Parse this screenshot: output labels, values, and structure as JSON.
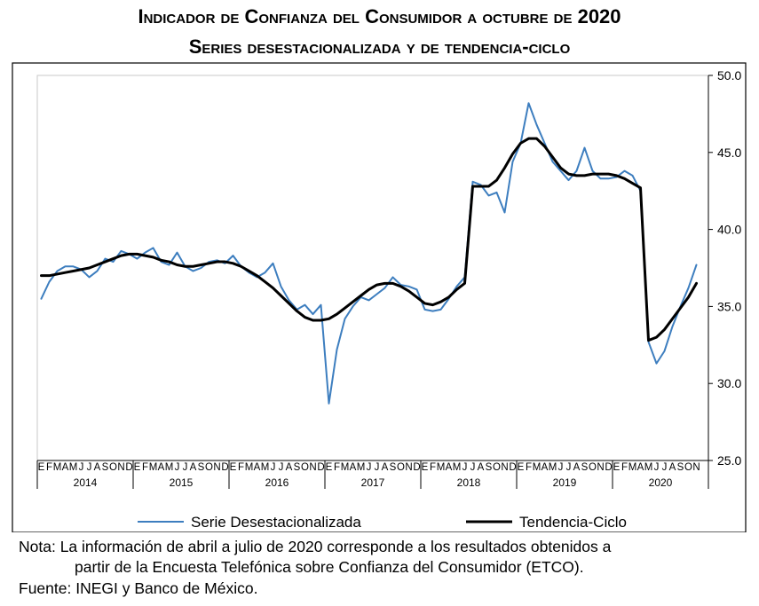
{
  "title_line1": "Indicador de Confianza del Consumidor a octubre de 2020",
  "title_line2": "Series desestacionalizada y de tendencia-ciclo",
  "chart_data": {
    "type": "line",
    "ylim": [
      25.0,
      50.0
    ],
    "yticks": [
      "50.0",
      "45.0",
      "40.0",
      "35.0",
      "30.0",
      "25.0"
    ],
    "y_axis_side": "right",
    "grid": false,
    "x_start": "2014-01",
    "x_end": "2020-10",
    "month_labels": [
      "E",
      "F",
      "M",
      "A",
      "M",
      "J",
      "J",
      "A",
      "S",
      "O",
      "N",
      "D"
    ],
    "years": [
      "2014",
      "2015",
      "2016",
      "2017",
      "2018",
      "2019",
      "2020"
    ],
    "legend_position": "bottom",
    "series": [
      {
        "name": "Serie Desestacionalizada",
        "color": "#3d7ebf",
        "values": [
          35.5,
          36.6,
          37.3,
          37.6,
          37.6,
          37.4,
          36.9,
          37.3,
          38.1,
          37.9,
          38.6,
          38.4,
          38.1,
          38.5,
          38.8,
          37.9,
          37.7,
          38.5,
          37.6,
          37.3,
          37.5,
          37.9,
          38.0,
          37.8,
          38.3,
          37.6,
          37.2,
          36.9,
          37.2,
          37.8,
          36.3,
          35.4,
          34.8,
          35.1,
          34.5,
          35.1,
          28.7,
          32.2,
          34.2,
          35.0,
          35.6,
          35.4,
          35.8,
          36.2,
          36.9,
          36.4,
          36.3,
          36.1,
          34.8,
          34.7,
          34.8,
          35.5,
          36.3,
          36.9,
          43.1,
          42.9,
          42.2,
          42.4,
          41.1,
          44.4,
          45.6,
          48.2,
          46.8,
          45.6,
          44.4,
          43.8,
          43.2,
          43.8,
          45.3,
          43.8,
          43.3,
          43.3,
          43.4,
          43.8,
          43.5,
          42.5,
          32.7,
          31.3,
          32.1,
          33.7,
          35.0,
          36.2,
          37.7
        ],
        "shown_from": "2014-01"
      },
      {
        "name": "Tendencia-Ciclo",
        "color": "#000000",
        "values": [
          37.0,
          37.0,
          37.1,
          37.2,
          37.3,
          37.4,
          37.5,
          37.7,
          37.9,
          38.1,
          38.3,
          38.4,
          38.4,
          38.3,
          38.2,
          38.0,
          37.9,
          37.7,
          37.6,
          37.6,
          37.7,
          37.8,
          37.9,
          37.9,
          37.8,
          37.6,
          37.3,
          37.0,
          36.6,
          36.2,
          35.7,
          35.2,
          34.7,
          34.3,
          34.1,
          34.1,
          34.2,
          34.5,
          34.9,
          35.3,
          35.7,
          36.1,
          36.4,
          36.5,
          36.5,
          36.3,
          36.0,
          35.6,
          35.2,
          35.1,
          35.3,
          35.6,
          36.1,
          36.5,
          42.8,
          42.8,
          42.8,
          43.2,
          44.0,
          44.9,
          45.6,
          45.9,
          45.9,
          45.4,
          44.7,
          44.0,
          43.6,
          43.5,
          43.5,
          43.6,
          43.6,
          43.6,
          43.5,
          43.3,
          43.0,
          42.7,
          32.8,
          33.0,
          33.5,
          34.2,
          34.9,
          35.6,
          36.5
        ],
        "shown_from": "2014-01"
      }
    ]
  },
  "notes": {
    "line1": "Nota: La información de abril a julio de 2020 corresponde a los resultados obtenidos a",
    "line2": "partir de la Encuesta Telefónica sobre Confianza del Consumidor (ETCO).",
    "line3": "Fuente: INEGI y Banco de México."
  }
}
